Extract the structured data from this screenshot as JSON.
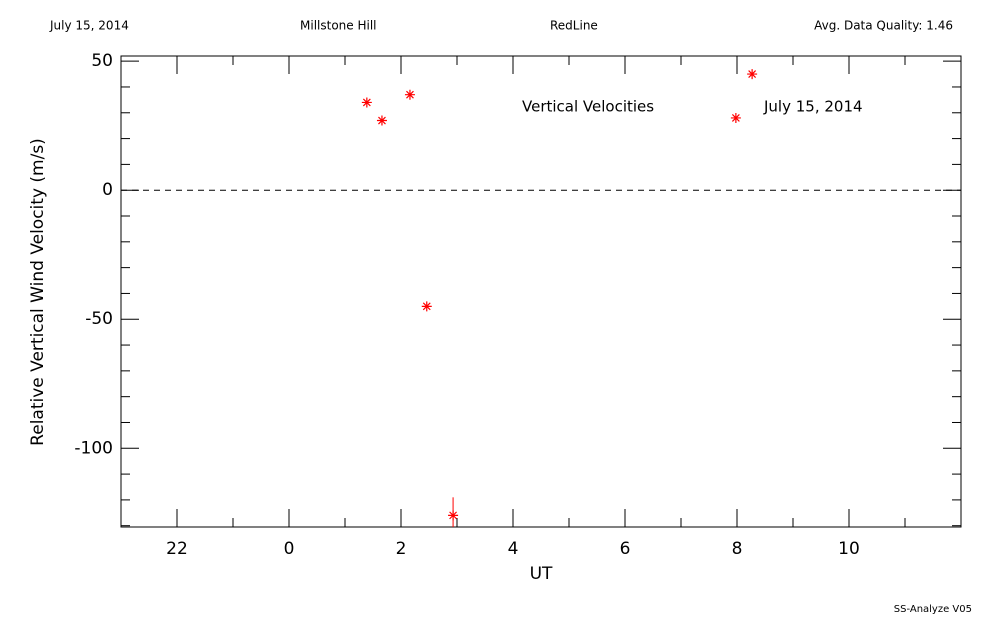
{
  "chart_data": {
    "type": "scatter",
    "header": [
      "July 15, 2014",
      "Millstone Hill",
      "RedLine",
      "Avg. Data Quality: 1.46"
    ],
    "annotations": [
      "Vertical Velocities",
      "July 15, 2014"
    ],
    "footer": "SS-Analyze V05",
    "x_label": "UT",
    "y_label": "Relative Vertical Wind Velocity (m/s)",
    "x": [
      1.39,
      1.66,
      2.16,
      2.46,
      2.93,
      7.98,
      8.27
    ],
    "values": [
      34,
      27,
      37,
      -45,
      -126,
      28,
      45
    ],
    "errors": [
      null,
      null,
      null,
      null,
      7,
      null,
      null
    ],
    "color": "#ff0000",
    "xlim": [
      -3,
      12
    ],
    "ylim": [
      -130.5,
      52
    ],
    "xticks": [
      {
        "value": -2,
        "label": "22"
      },
      0,
      2,
      4,
      6,
      8,
      10
    ],
    "xminorticks": [
      -3,
      -1,
      1,
      3,
      5,
      7,
      9,
      11
    ],
    "yticks": [
      -100,
      -50,
      0,
      50
    ],
    "yminorticks": [
      -130,
      -120,
      -110,
      -90,
      -80,
      -70,
      -60,
      -40,
      -30,
      -20,
      -10,
      10,
      20,
      30,
      40
    ],
    "hline": 0
  }
}
